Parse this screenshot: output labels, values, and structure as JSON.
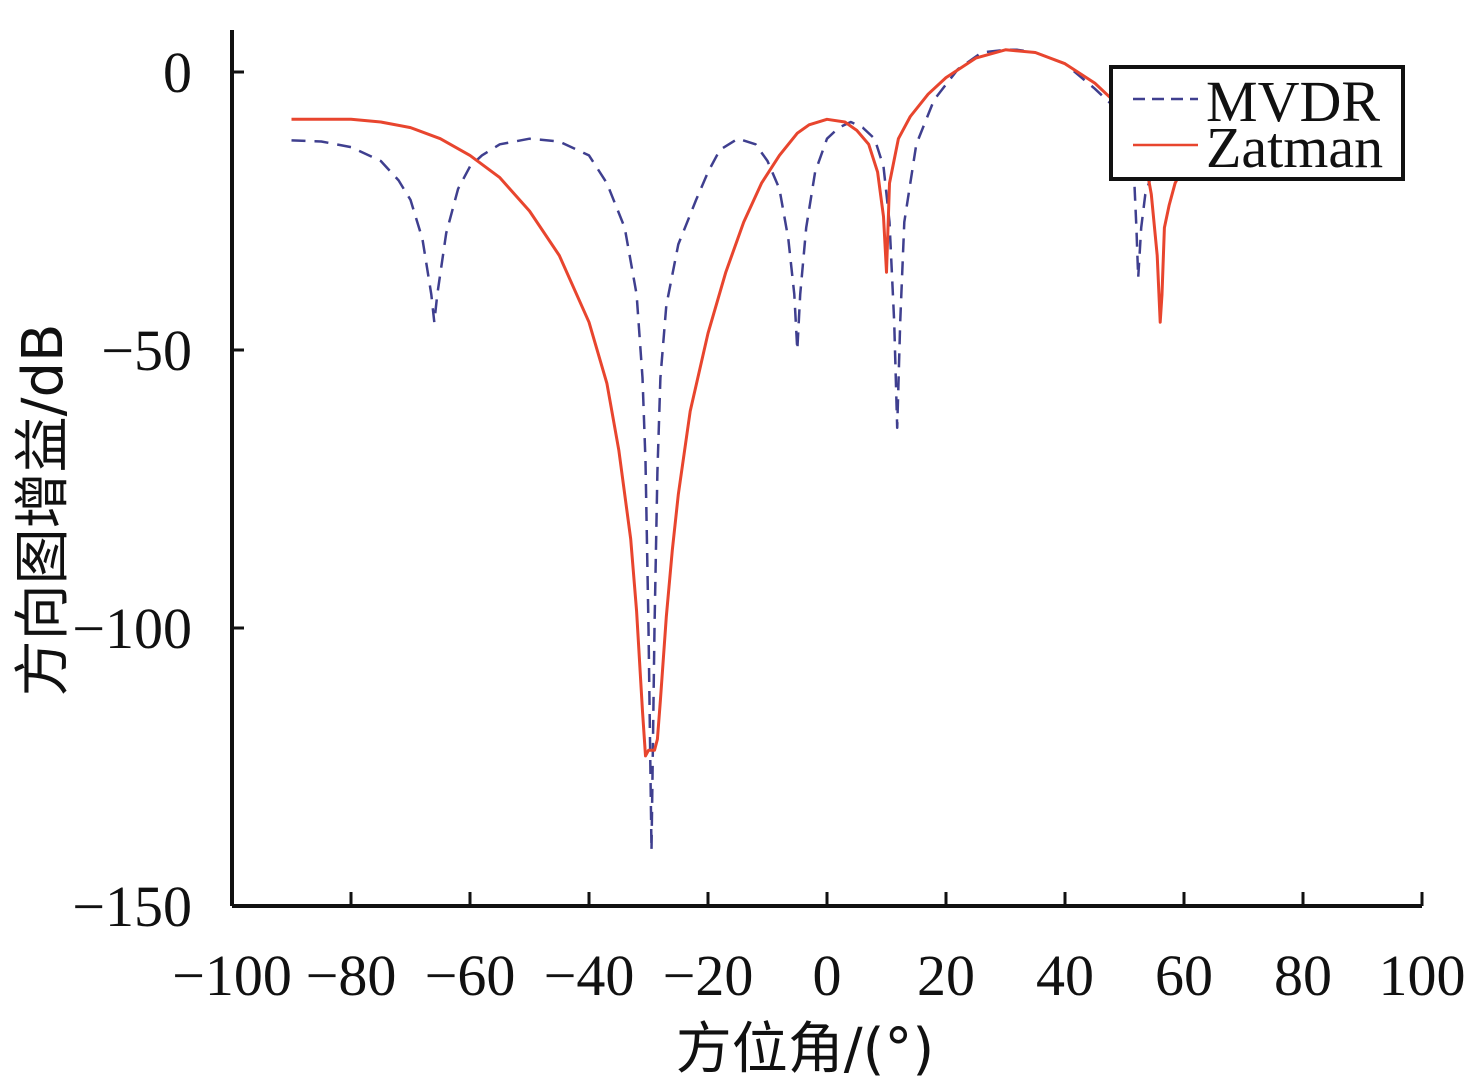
{
  "chart_data": {
    "type": "line",
    "xlabel": "方位角/(°)",
    "ylabel": "方向图增益/dB",
    "xlim": [
      -100,
      100
    ],
    "ylim": [
      -150,
      5
    ],
    "xticks": [
      -100,
      -80,
      -60,
      -40,
      -20,
      0,
      20,
      40,
      60,
      80,
      100
    ],
    "yticks": [
      0,
      -50,
      -100,
      -150
    ],
    "xtick_labels": [
      "−100",
      "−80",
      "−60",
      "−40",
      "−20",
      "0",
      "20",
      "40",
      "60",
      "80",
      "100"
    ],
    "ytick_labels": [
      "0",
      "−50",
      "−100",
      "−150"
    ],
    "legend": {
      "position": "top-right"
    },
    "grid": false,
    "series": [
      {
        "name": "MVDR",
        "color": "#3f3f8f",
        "dash": "dashed",
        "x": [
          -90,
          -85,
          -80,
          -75,
          -72,
          -70,
          -68,
          -66.5,
          -66,
          -65.5,
          -64,
          -62,
          -60,
          -58,
          -55,
          -50,
          -45,
          -40,
          -37,
          -34,
          -32,
          -31,
          -30.5,
          -30,
          -29.5,
          -29,
          -28.5,
          -28,
          -27,
          -25,
          -22,
          -20,
          -18,
          -15,
          -12,
          -10,
          -8,
          -6.5,
          -5.5,
          -5,
          -4.5,
          -3.5,
          -2,
          0,
          2,
          4,
          6,
          8,
          9.5,
          10.5,
          11.3,
          11.8,
          12.3,
          13,
          15,
          18,
          22,
          26,
          30,
          32,
          35,
          40,
          45,
          48,
          50,
          51.5,
          52,
          52.3,
          52.8,
          53.5,
          55,
          57,
          59
        ],
        "y": [
          -12.3,
          -12.5,
          -13.5,
          -16,
          -19.5,
          -23,
          -30,
          -40,
          -45,
          -40,
          -29,
          -21,
          -17,
          -15,
          -13,
          -12,
          -12.5,
          -15,
          -20,
          -28,
          -40,
          -55,
          -70,
          -100,
          -140,
          -100,
          -72,
          -55,
          -42,
          -31,
          -23,
          -18,
          -14,
          -12,
          -13,
          -16,
          -21,
          -30,
          -40,
          -50,
          -40,
          -28,
          -18,
          -12,
          -10,
          -9,
          -10,
          -12,
          -17,
          -27,
          -45,
          -64,
          -45,
          -27,
          -13,
          -5,
          0.5,
          3.5,
          4,
          4,
          3.5,
          1.5,
          -3,
          -6,
          -9,
          -16,
          -28,
          -37,
          -28,
          -22,
          -17,
          -16,
          -17.5
        ]
      },
      {
        "name": "Zatman",
        "color": "#e8452e",
        "dash": "solid",
        "x": [
          -90,
          -85,
          -80,
          -75,
          -70,
          -65,
          -60,
          -55,
          -50,
          -45,
          -40,
          -37,
          -35,
          -33,
          -32,
          -31,
          -30.5,
          -30,
          -29,
          -28.5,
          -28,
          -27,
          -26,
          -25,
          -23,
          -20,
          -17,
          -14,
          -11,
          -8,
          -5,
          -3,
          0,
          3,
          5,
          7,
          8.5,
          9.5,
          9.8,
          10,
          10.5,
          12,
          14,
          17,
          20,
          25,
          30,
          35,
          40,
          45,
          48,
          50,
          52,
          53.5,
          54.5,
          55.5,
          56,
          56.3,
          56.7,
          57.5,
          58.5,
          59.5
        ],
        "y": [
          -8.5,
          -8.5,
          -8.5,
          -9,
          -10,
          -12,
          -15,
          -19,
          -25,
          -33,
          -45,
          -56,
          -68,
          -84,
          -97,
          -115,
          -123,
          -122,
          -122,
          -120,
          -113,
          -98,
          -86,
          -76,
          -61,
          -47,
          -36,
          -27,
          -20,
          -15,
          -11,
          -9.5,
          -8.5,
          -9,
          -10.5,
          -13,
          -18,
          -26,
          -32,
          -36,
          -20,
          -12,
          -8,
          -4,
          -1,
          2.5,
          4,
          3.5,
          1.5,
          -2,
          -5,
          -7.5,
          -11,
          -16,
          -22,
          -33,
          -45,
          -40,
          -28,
          -24,
          -20,
          -18
        ]
      }
    ]
  }
}
